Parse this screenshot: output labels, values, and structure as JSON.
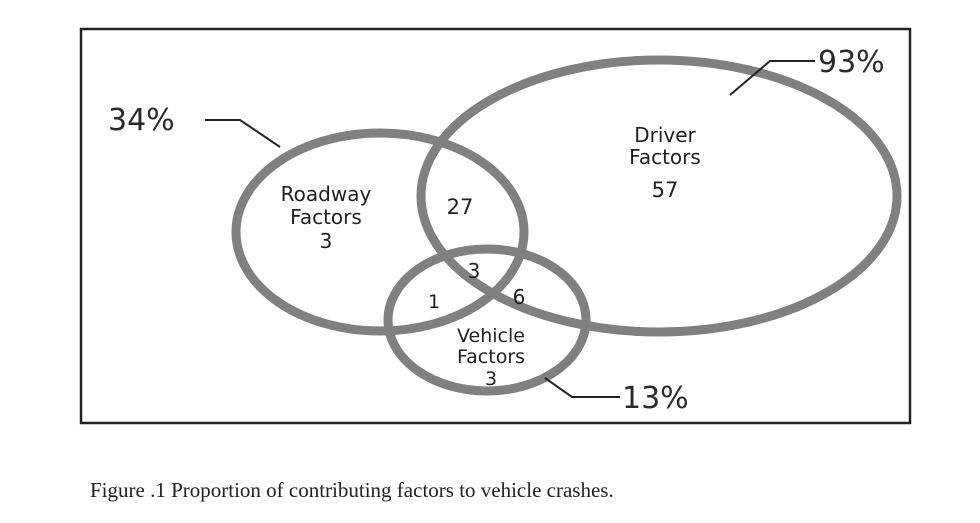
{
  "figure": {
    "caption": "Figure .1 Proportion of contributing factors to vehicle crashes."
  },
  "diagram": {
    "sets": {
      "roadway": {
        "label_line1": "Roadway",
        "label_line2": "Factors",
        "only_value": "3",
        "total_percent": "34%"
      },
      "driver": {
        "label_line1": "Driver",
        "label_line2": "Factors",
        "only_value": "57",
        "total_percent": "93%"
      },
      "vehicle": {
        "label_line1": "Vehicle",
        "label_line2": "Factors",
        "only_value": "3",
        "total_percent": "13%"
      }
    },
    "intersections": {
      "roadway_driver": "27",
      "roadway_driver_vehicle": "3",
      "roadway_vehicle": "1",
      "driver_vehicle": "6"
    },
    "colors": {
      "circle_stroke": "#808080",
      "frame_stroke": "#222222",
      "text": "#1f1f1f"
    }
  }
}
